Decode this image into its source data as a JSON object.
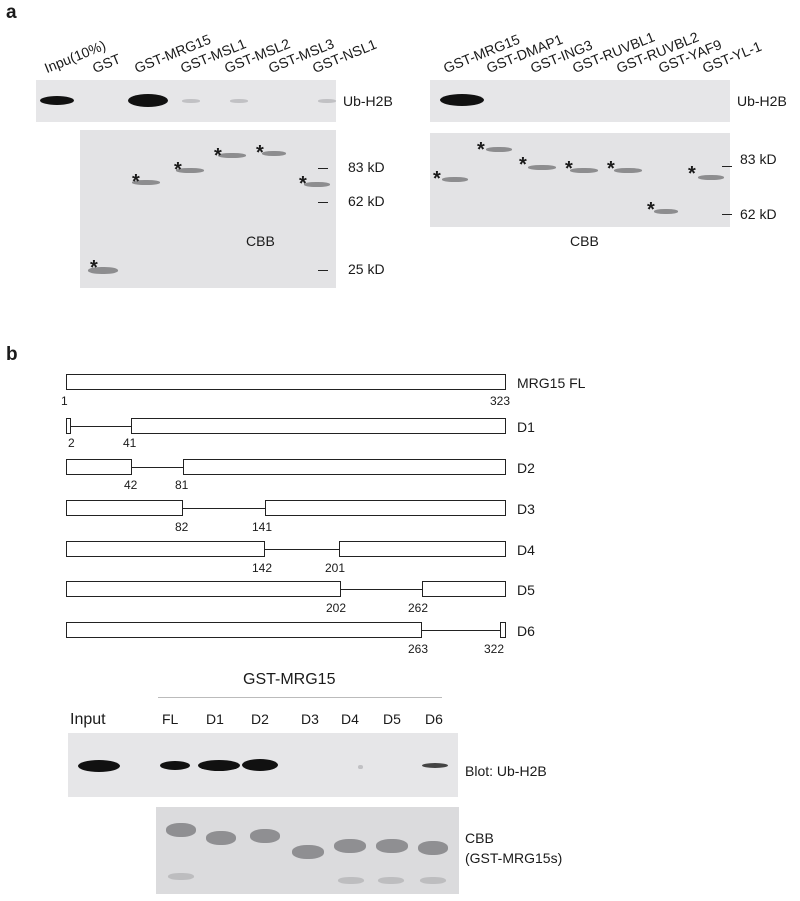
{
  "panel_a": {
    "letter": "a",
    "left": {
      "lanes": [
        "Inpu(10%)",
        "GST",
        "GST-MRG15",
        "GST-MSL1",
        "GST-MSL2",
        "GST-MSL3",
        "GST-NSL1"
      ],
      "blot_label": "Ub-H2B",
      "gel_label": "CBB",
      "markers": [
        "83 kD",
        "62 kD",
        "25 kD"
      ],
      "star": "*"
    },
    "right": {
      "lanes": [
        "GST-MRG15",
        "GST-DMAP1",
        "GST-ING3",
        "GST-RUVBL1",
        "GST-RUVBL2",
        "GST-YAF9",
        "GST-YL-1"
      ],
      "blot_label": "Ub-H2B",
      "gel_label": "CBB",
      "markers": [
        "83 kD",
        "62 kD"
      ],
      "star": "*"
    }
  },
  "panel_b": {
    "letter": "b",
    "constructs": [
      {
        "label": "MRG15 FL",
        "start": "1",
        "end": "323"
      },
      {
        "label": "D1",
        "del_start": "2",
        "del_end": "41"
      },
      {
        "label": "D2",
        "del_start": "42",
        "del_end": "81"
      },
      {
        "label": "D3",
        "del_start": "82",
        "del_end": "141"
      },
      {
        "label": "D4",
        "del_start": "142",
        "del_end": "201"
      },
      {
        "label": "D5",
        "del_start": "202",
        "del_end": "262"
      },
      {
        "label": "D6",
        "del_start": "263",
        "del_end": "322"
      }
    ],
    "pulldown": {
      "header": "GST-MRG15",
      "input_label": "Input",
      "lanes": [
        "FL",
        "D1",
        "D2",
        "D3",
        "D4",
        "D5",
        "D6"
      ],
      "blot_label": "Blot: Ub-H2B",
      "gel_label_1": "CBB",
      "gel_label_2": "(GST-MRG15s)"
    }
  }
}
